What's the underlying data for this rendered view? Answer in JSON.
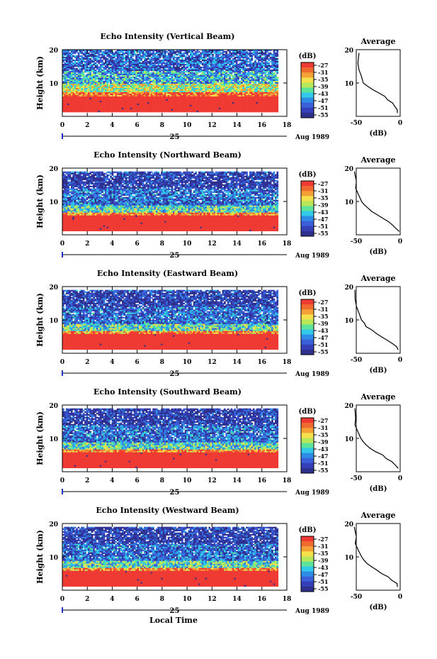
{
  "figure": {
    "xlabel": "Local Time",
    "date_label": "25",
    "month_label": "Aug 1989"
  },
  "colorbar": {
    "title": "(dB)",
    "ticks": [
      "-27",
      "-31",
      "-35",
      "-39",
      "-43",
      "-47",
      "-51",
      "-55"
    ],
    "colors": [
      "#ee3a33",
      "#f06a30",
      "#f5a036",
      "#f4e04a",
      "#b6e85a",
      "#5ee39a",
      "#33c9e8",
      "#2f8ce6",
      "#3a5fd9",
      "#3540b8",
      "#2f2f8e"
    ]
  },
  "chart_data": [
    {
      "type": "heatmap",
      "title": "Echo Intensity (Vertical Beam)",
      "ylabel": "Height (km)",
      "xlim": [
        0,
        18
      ],
      "ylim": [
        0,
        20
      ],
      "xticks": [
        "0",
        "2",
        "4",
        "6",
        "8",
        "10",
        "12",
        "14",
        "16",
        "18"
      ],
      "yticks": [
        "10",
        "20"
      ],
      "data_extent_x": [
        0,
        17.2
      ],
      "data_extent_y": [
        1.5,
        20
      ],
      "color_scale_db": [
        -55,
        -27
      ],
      "layers": [
        {
          "from_km": 1.5,
          "to_km": 6.0,
          "db": -27
        },
        {
          "from_km": 6.0,
          "to_km": 7.5,
          "db": -29
        },
        {
          "from_km": 7.5,
          "to_km": 10.0,
          "db": -38
        },
        {
          "from_km": 10.0,
          "to_km": 14.0,
          "db": -45
        },
        {
          "from_km": 14.0,
          "to_km": 20.0,
          "db": -50
        }
      ]
    },
    {
      "type": "line",
      "title": "Average",
      "xlabel": "(dB)",
      "ylabel": "",
      "xlim": [
        -50,
        0
      ],
      "ylim": [
        0,
        20
      ],
      "xticks": [
        "-50",
        "0"
      ],
      "yticks": [
        "10",
        "20"
      ],
      "x": [
        -2,
        -3,
        -6,
        -10,
        -14,
        -18,
        -24,
        -30,
        -36,
        -41,
        -44,
        -46,
        -48,
        -48
      ],
      "y": [
        1,
        2,
        3,
        4,
        5,
        6,
        7,
        8,
        9,
        10,
        12,
        14,
        16,
        19
      ]
    },
    {
      "type": "heatmap",
      "title": "Echo Intensity (Northward Beam)",
      "ylabel": "Height (km)",
      "xlim": [
        0,
        18
      ],
      "ylim": [
        0,
        20
      ],
      "xticks": [
        "0",
        "2",
        "4",
        "6",
        "8",
        "10",
        "12",
        "14",
        "16",
        "18"
      ],
      "yticks": [
        "10",
        "20"
      ],
      "data_extent_x": [
        0,
        17.2
      ],
      "data_extent_y": [
        1.5,
        19
      ],
      "color_scale_db": [
        -55,
        -27
      ],
      "layers": [
        {
          "from_km": 1.5,
          "to_km": 6.0,
          "db": -27
        },
        {
          "from_km": 6.0,
          "to_km": 7.0,
          "db": -31
        },
        {
          "from_km": 7.0,
          "to_km": 9.0,
          "db": -42
        },
        {
          "from_km": 9.0,
          "to_km": 14.0,
          "db": -49
        },
        {
          "from_km": 14.0,
          "to_km": 19.0,
          "db": -53
        }
      ]
    },
    {
      "type": "line",
      "title": "Average",
      "xlabel": "(dB)",
      "ylabel": "",
      "xlim": [
        -50,
        0
      ],
      "ylim": [
        0,
        20
      ],
      "xticks": [
        "-50",
        "0"
      ],
      "yticks": [
        "10",
        "20"
      ],
      "x": [
        -2,
        -4,
        -8,
        -14,
        -20,
        -26,
        -32,
        -37,
        -41,
        -44,
        -47,
        -50,
        -51,
        -52
      ],
      "y": [
        1,
        2,
        3,
        4,
        5,
        6,
        7,
        8,
        9,
        10,
        12,
        14,
        16,
        19
      ]
    },
    {
      "type": "heatmap",
      "title": "Echo Intensity (Eastward Beam)",
      "ylabel": "Height (km)",
      "xlim": [
        0,
        18
      ],
      "ylim": [
        0,
        20
      ],
      "xticks": [
        "0",
        "2",
        "4",
        "6",
        "8",
        "10",
        "12",
        "14",
        "16",
        "18"
      ],
      "yticks": [
        "10",
        "20"
      ],
      "data_extent_x": [
        0,
        17.2
      ],
      "data_extent_y": [
        1.5,
        19
      ],
      "color_scale_db": [
        -55,
        -27
      ],
      "layers": [
        {
          "from_km": 1.5,
          "to_km": 6.0,
          "db": -27
        },
        {
          "from_km": 6.0,
          "to_km": 7.0,
          "db": -31
        },
        {
          "from_km": 7.0,
          "to_km": 9.0,
          "db": -42
        },
        {
          "from_km": 9.0,
          "to_km": 14.0,
          "db": -49
        },
        {
          "from_km": 14.0,
          "to_km": 19.0,
          "db": -53
        }
      ]
    },
    {
      "type": "line",
      "title": "Average",
      "xlabel": "(dB)",
      "ylabel": "",
      "xlim": [
        -50,
        0
      ],
      "ylim": [
        0,
        20
      ],
      "xticks": [
        "-50",
        "0"
      ],
      "yticks": [
        "10",
        "20"
      ],
      "x": [
        -2,
        -4,
        -9,
        -15,
        -21,
        -27,
        -33,
        -38,
        -42,
        -45,
        -47,
        -50,
        -51,
        -52
      ],
      "y": [
        1,
        2,
        3,
        4,
        5,
        6,
        7,
        8,
        9,
        10,
        12,
        14,
        16,
        19
      ]
    },
    {
      "type": "heatmap",
      "title": "Echo Intensity (Southward Beam)",
      "ylabel": "Height (km)",
      "xlim": [
        0,
        18
      ],
      "ylim": [
        0,
        20
      ],
      "xticks": [
        "0",
        "2",
        "4",
        "6",
        "8",
        "10",
        "12",
        "14",
        "16",
        "18"
      ],
      "yticks": [
        "10",
        "20"
      ],
      "data_extent_x": [
        0,
        17.2
      ],
      "data_extent_y": [
        1.5,
        19
      ],
      "color_scale_db": [
        -55,
        -27
      ],
      "layers": [
        {
          "from_km": 1.5,
          "to_km": 6.0,
          "db": -27
        },
        {
          "from_km": 6.0,
          "to_km": 7.0,
          "db": -31
        },
        {
          "from_km": 7.0,
          "to_km": 9.0,
          "db": -42
        },
        {
          "from_km": 9.0,
          "to_km": 14.0,
          "db": -49
        },
        {
          "from_km": 14.0,
          "to_km": 19.0,
          "db": -53
        }
      ]
    },
    {
      "type": "line",
      "title": "Average",
      "xlabel": "(dB)",
      "ylabel": "",
      "xlim": [
        -50,
        0
      ],
      "ylim": [
        0,
        20
      ],
      "xticks": [
        "-50",
        "0"
      ],
      "yticks": [
        "10",
        "20"
      ],
      "x": [
        -2,
        -5,
        -9,
        -15,
        -21,
        -27,
        -33,
        -38,
        -42,
        -45,
        -47,
        -50,
        -51,
        -52
      ],
      "y": [
        1,
        2,
        3,
        4,
        5,
        6,
        7,
        8,
        9,
        10,
        12,
        14,
        16,
        19
      ]
    },
    {
      "type": "heatmap",
      "title": "Echo Intensity (Westward Beam)",
      "ylabel": "Height (km)",
      "xlim": [
        0,
        18
      ],
      "ylim": [
        0,
        20
      ],
      "xticks": [
        "0",
        "2",
        "4",
        "6",
        "8",
        "10",
        "12",
        "14",
        "16",
        "18"
      ],
      "yticks": [
        "10",
        "20"
      ],
      "data_extent_x": [
        0,
        17.2
      ],
      "data_extent_y": [
        1.5,
        19
      ],
      "color_scale_db": [
        -55,
        -27
      ],
      "layers": [
        {
          "from_km": 1.5,
          "to_km": 6.0,
          "db": -27
        },
        {
          "from_km": 6.0,
          "to_km": 7.0,
          "db": -31
        },
        {
          "from_km": 7.0,
          "to_km": 9.0,
          "db": -42
        },
        {
          "from_km": 9.0,
          "to_km": 14.0,
          "db": -49
        },
        {
          "from_km": 14.0,
          "to_km": 19.0,
          "db": -53
        }
      ]
    },
    {
      "type": "line",
      "title": "Average",
      "xlabel": "(dB)",
      "ylabel": "",
      "xlim": [
        -50,
        0
      ],
      "ylim": [
        0,
        20
      ],
      "xticks": [
        "-50",
        "0"
      ],
      "yticks": [
        "10",
        "20"
      ],
      "x": [
        -2,
        -4,
        -9,
        -15,
        -21,
        -27,
        -33,
        -38,
        -42,
        -45,
        -47,
        -50,
        -51,
        -52
      ],
      "y": [
        1,
        2,
        3,
        4,
        5,
        6,
        7,
        8,
        9,
        10,
        12,
        14,
        16,
        19
      ]
    }
  ]
}
